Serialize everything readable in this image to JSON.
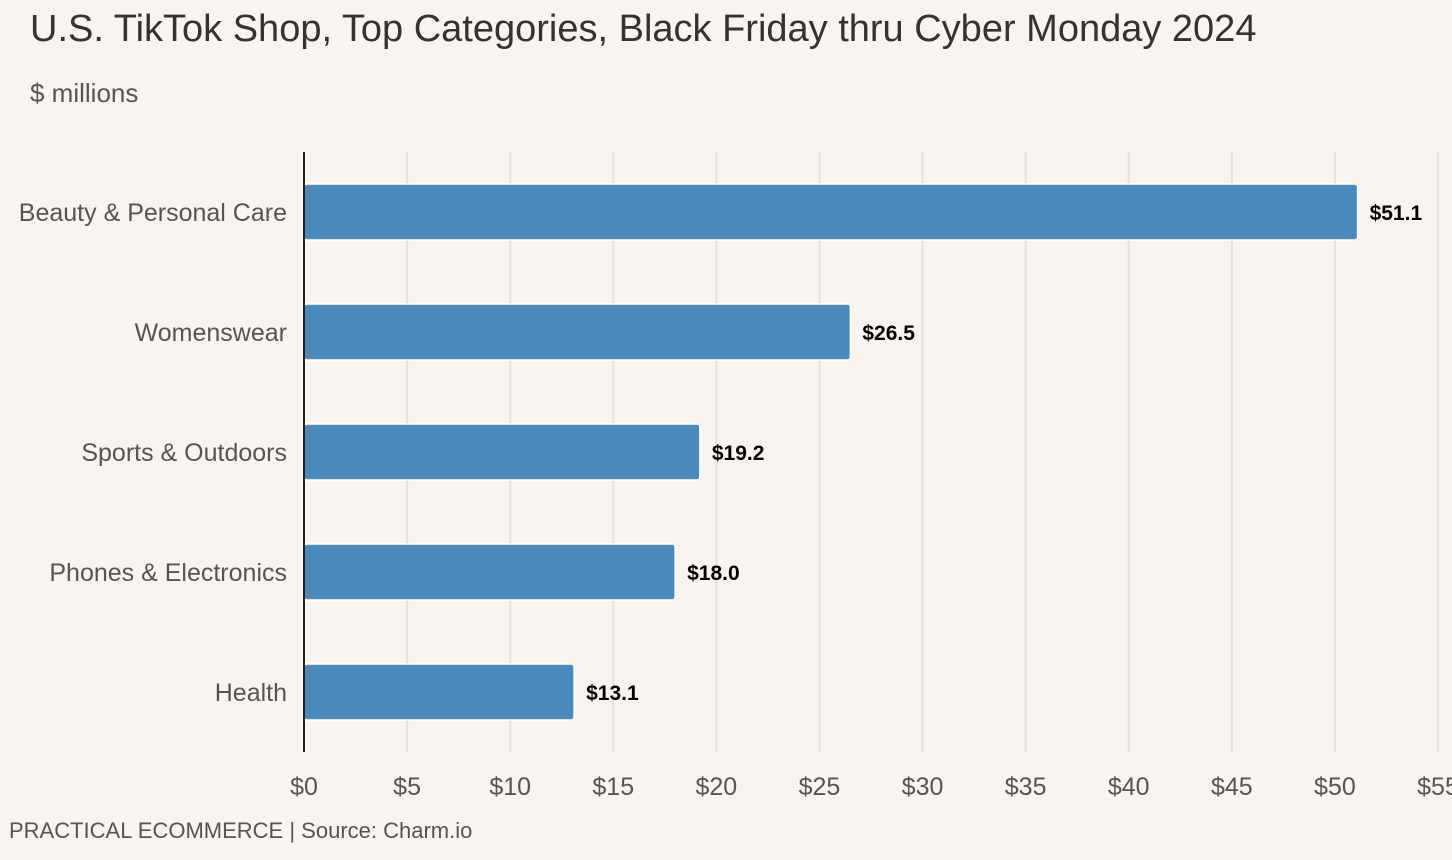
{
  "header": {
    "title": "U.S. TikTok Shop, Top Categories, Black Friday thru Cyber Monday 2024",
    "subtitle": "$ millions"
  },
  "footer": {
    "brand": "PRACTICAL ECOMMERCE",
    "separator": " | ",
    "source": "Source: Charm.io"
  },
  "colors": {
    "bar": "#4a89bb",
    "background": "#f9f4f0",
    "grid": "#e4e0dc",
    "axis": "#222222"
  },
  "chart_data": {
    "type": "bar",
    "orientation": "horizontal",
    "title": "U.S. TikTok Shop, Top Categories, Black Friday thru Cyber Monday 2024",
    "subtitle": "$ millions",
    "categories": [
      "Beauty & Personal Care",
      "Womenswear",
      "Sports & Outdoors",
      "Phones & Electronics",
      "Health"
    ],
    "values": [
      51.1,
      26.5,
      19.2,
      18.0,
      13.1
    ],
    "value_labels": [
      "$51.1",
      "$26.5",
      "$19.2",
      "$18.0",
      "$13.1"
    ],
    "xlim": [
      0,
      55
    ],
    "x_ticks": [
      0,
      5,
      10,
      15,
      20,
      25,
      30,
      35,
      40,
      45,
      50,
      55
    ],
    "x_tick_labels": [
      "$0",
      "$5",
      "$10",
      "$15",
      "$20",
      "$25",
      "$30",
      "$35",
      "$40",
      "$45",
      "$50",
      "$55"
    ],
    "grid": "vertical",
    "legend": "none"
  }
}
